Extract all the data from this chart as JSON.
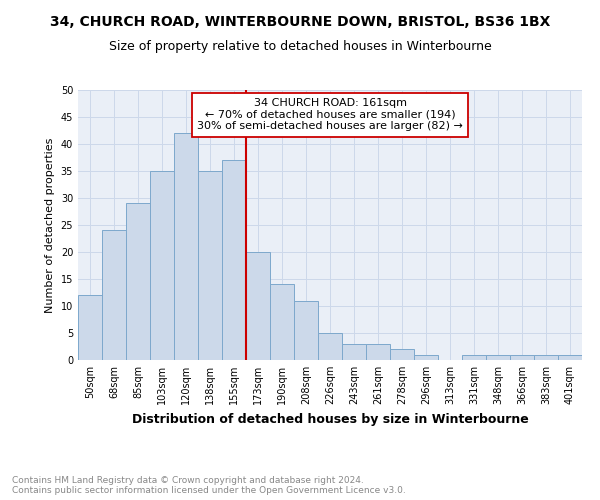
{
  "title_line1": "34, CHURCH ROAD, WINTERBOURNE DOWN, BRISTOL, BS36 1BX",
  "title_line2": "Size of property relative to detached houses in Winterbourne",
  "xlabel": "Distribution of detached houses by size in Winterbourne",
  "ylabel": "Number of detached properties",
  "categories": [
    "50sqm",
    "68sqm",
    "85sqm",
    "103sqm",
    "120sqm",
    "138sqm",
    "155sqm",
    "173sqm",
    "190sqm",
    "208sqm",
    "226sqm",
    "243sqm",
    "261sqm",
    "278sqm",
    "296sqm",
    "313sqm",
    "331sqm",
    "348sqm",
    "366sqm",
    "383sqm",
    "401sqm"
  ],
  "values": [
    12,
    24,
    29,
    35,
    42,
    35,
    37,
    20,
    14,
    11,
    5,
    3,
    3,
    2,
    1,
    0,
    1,
    1,
    1,
    1,
    1
  ],
  "bar_color": "#ccd9ea",
  "bar_edge_color": "#7da8cc",
  "vline_x_index": 6.5,
  "vline_color": "#cc0000",
  "annotation_text": "34 CHURCH ROAD: 161sqm\n← 70% of detached houses are smaller (194)\n30% of semi-detached houses are larger (82) →",
  "annotation_box_color": "#ffffff",
  "annotation_box_edge": "#cc0000",
  "footnote": "Contains HM Land Registry data © Crown copyright and database right 2024.\nContains public sector information licensed under the Open Government Licence v3.0.",
  "ylim": [
    0,
    50
  ],
  "yticks": [
    0,
    5,
    10,
    15,
    20,
    25,
    30,
    35,
    40,
    45,
    50
  ],
  "grid_color": "#cdd8ea",
  "plot_bg_color": "#eaeff7",
  "fig_bg_color": "#ffffff",
  "title_fontsize": 10,
  "subtitle_fontsize": 9,
  "ylabel_fontsize": 8,
  "xlabel_fontsize": 9,
  "tick_fontsize": 7,
  "annot_fontsize": 8,
  "footnote_fontsize": 6.5
}
